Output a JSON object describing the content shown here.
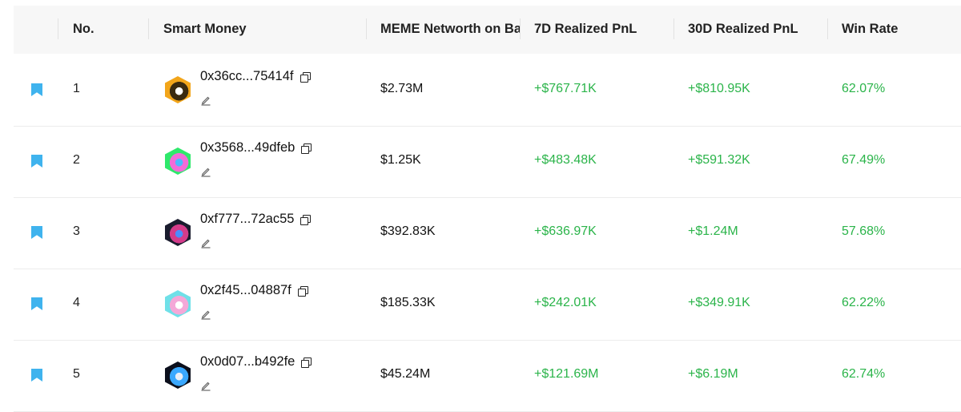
{
  "header": {
    "no": "No.",
    "smart_money": "Smart Money",
    "networth": "MEME Networth on Ba",
    "pnl7d": "7D Realized PnL",
    "pnl30d": "30D Realized PnL",
    "win_rate": "Win Rate"
  },
  "colors": {
    "accent_bookmark": "#3fb3ee",
    "positive": "#2bb44a",
    "header_bg": "#f7f7f7"
  },
  "rows": [
    {
      "no": "1",
      "address": "0x36cc...75414f",
      "networth": "$2.73M",
      "pnl7d": "+$767.71K",
      "pnl30d": "+$810.95K",
      "win_rate": "62.07%",
      "avatar_colors": [
        "#f2a51a",
        "#3a2a10",
        "#ffffff"
      ]
    },
    {
      "no": "2",
      "address": "0x3568...49dfeb",
      "networth": "$1.25K",
      "pnl7d": "+$483.48K",
      "pnl30d": "+$591.32K",
      "win_rate": "67.49%",
      "avatar_colors": [
        "#2ee86b",
        "#f26bd8",
        "#4bb9ff"
      ]
    },
    {
      "no": "3",
      "address": "0xf777...72ac55",
      "networth": "$392.83K",
      "pnl7d": "+$636.97K",
      "pnl30d": "+$1.24M",
      "win_rate": "57.68%",
      "avatar_colors": [
        "#1a1c2e",
        "#d43b8a",
        "#4a8cff"
      ]
    },
    {
      "no": "4",
      "address": "0x2f45...04887f",
      "networth": "$185.33K",
      "pnl7d": "+$242.01K",
      "pnl30d": "+$349.91K",
      "win_rate": "62.22%",
      "avatar_colors": [
        "#6fe0e8",
        "#f4a8d8",
        "#ffffff"
      ]
    },
    {
      "no": "5",
      "address": "0x0d07...b492fe",
      "networth": "$45.24M",
      "pnl7d": "+$121.69M",
      "pnl30d": "+$6.19M",
      "win_rate": "62.74%",
      "avatar_colors": [
        "#0b0f1c",
        "#3aa8ff",
        "#e8eef8"
      ]
    }
  ]
}
